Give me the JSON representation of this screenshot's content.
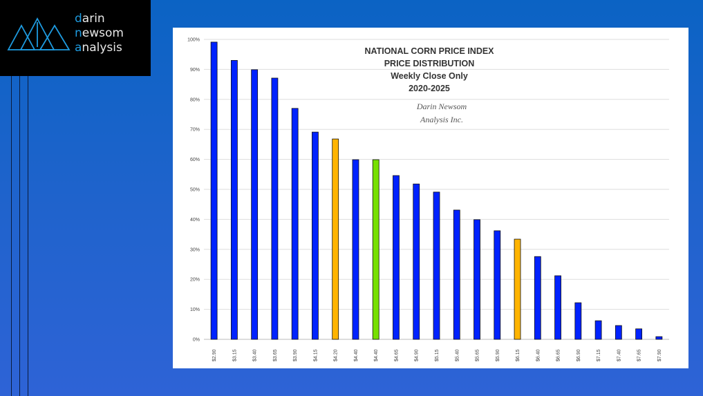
{
  "logo": {
    "line1_accent": "d",
    "line1_rest": "arin",
    "line2_accent": "n",
    "line2_mid": "ew",
    "line2_rest": "som",
    "line3_accent": "a",
    "line3_rest": "nalysis"
  },
  "chart_data": {
    "type": "bar",
    "title": [
      "NATIONAL CORN PRICE INDEX",
      "PRICE DISTRIBUTION",
      "Weekly Close Only",
      "2020-2025"
    ],
    "watermark": [
      "Darin Newsom",
      "Analysis Inc."
    ],
    "xlabel": "",
    "ylabel": "",
    "ylim": [
      0,
      100
    ],
    "yticks": [
      "0%",
      "10%",
      "20%",
      "30%",
      "40%",
      "50%",
      "60%",
      "70%",
      "80%",
      "90%",
      "100%"
    ],
    "categories": [
      "$2.90",
      "$3.15",
      "$3.40",
      "$3.65",
      "$3.90",
      "$4.15",
      "$4.20",
      "$4.40",
      "$4.40",
      "$4.65",
      "$4.90",
      "$5.15",
      "$5.40",
      "$5.65",
      "$5.90",
      "$6.15",
      "$6.40",
      "$6.65",
      "$6.90",
      "$7.15",
      "$7.40",
      "$7.65",
      "$7.90"
    ],
    "values": [
      99.1,
      93.0,
      89.9,
      87.1,
      77.0,
      69.1,
      66.8,
      59.9,
      59.9,
      54.6,
      51.8,
      49.1,
      43.1,
      39.9,
      36.2,
      33.4,
      27.6,
      21.2,
      12.2,
      6.2,
      4.6,
      3.5,
      0.9
    ],
    "bar_colors": [
      "#0022ff",
      "#0022ff",
      "#0022ff",
      "#0022ff",
      "#0022ff",
      "#0022ff",
      "#ffb400",
      "#0022ff",
      "#77e000",
      "#0022ff",
      "#0022ff",
      "#0022ff",
      "#0022ff",
      "#0022ff",
      "#0022ff",
      "#ffb400",
      "#0022ff",
      "#0022ff",
      "#0022ff",
      "#0022ff",
      "#0022ff",
      "#0022ff",
      "#0022ff"
    ],
    "grid": true,
    "legend": "none"
  }
}
